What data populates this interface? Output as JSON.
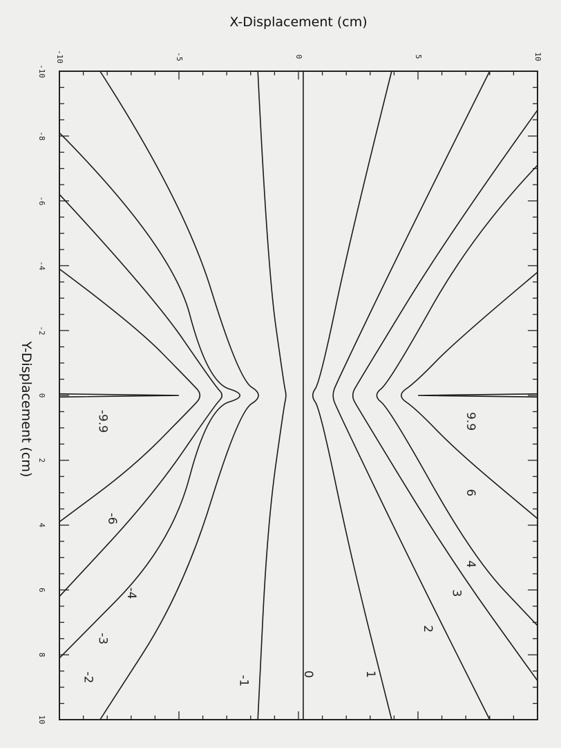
{
  "chart_data": {
    "type": "contour",
    "xlabel": "X-Displacement (cm)",
    "ylabel": "Y-Displacement (cm)",
    "xlim": [
      -10,
      10
    ],
    "ylim": [
      -10,
      10
    ],
    "x_ticks": [
      "-10",
      "-5",
      "0",
      "5",
      "10"
    ],
    "y_ticks": [
      "-10",
      "-8",
      "-6",
      "-4",
      "-2",
      "0",
      "2",
      "4",
      "6",
      "8",
      "10"
    ],
    "contour_levels": [
      {
        "level": 0,
        "label": "0",
        "label_at": [
          0.4,
          8.6
        ],
        "points": [
          [
            0.2,
            -10
          ],
          [
            0.2,
            10
          ]
        ]
      },
      {
        "level": 1,
        "label": "1",
        "label_at": [
          3.0,
          8.6
        ],
        "points": [
          [
            3.9,
            -10
          ],
          [
            2.2,
            -5
          ],
          [
            0.9,
            -0.4
          ],
          [
            0.5,
            0
          ],
          [
            0.9,
            0.4
          ],
          [
            2.2,
            5
          ],
          [
            3.9,
            10
          ]
        ]
      },
      {
        "level": 2,
        "label": "2",
        "label_at": [
          5.4,
          7.2
        ],
        "points": [
          [
            8.0,
            -10
          ],
          [
            4.6,
            -5
          ],
          [
            1.6,
            -0.4
          ],
          [
            1.4,
            0
          ],
          [
            1.6,
            0.4
          ],
          [
            4.6,
            5
          ],
          [
            8.0,
            10
          ]
        ]
      },
      {
        "level": 3,
        "label": "3",
        "label_at": [
          6.6,
          6.1
        ],
        "points": [
          [
            10,
            -8.8
          ],
          [
            6.3,
            -5
          ],
          [
            2.5,
            -0.4
          ],
          [
            2.2,
            0
          ],
          [
            2.5,
            0.4
          ],
          [
            6.3,
            5
          ],
          [
            10,
            8.8
          ]
        ]
      },
      {
        "level": 4,
        "label": "4",
        "label_at": [
          7.2,
          5.2
        ],
        "points": [
          [
            10,
            -7.1
          ],
          [
            7.3,
            -5
          ],
          [
            3.8,
            -0.4
          ],
          [
            3.1,
            0
          ],
          [
            3.8,
            0.4
          ],
          [
            7.3,
            5
          ],
          [
            10,
            7.1
          ]
        ]
      },
      {
        "level": 6,
        "label": "6",
        "label_at": [
          7.2,
          3.0
        ],
        "points": [
          [
            10,
            -3.8
          ],
          [
            6.6,
            -1.7
          ],
          [
            4.9,
            -0.4
          ],
          [
            4.1,
            0
          ],
          [
            4.9,
            0.4
          ],
          [
            6.6,
            1.7
          ],
          [
            10,
            3.8
          ]
        ]
      },
      {
        "level": 9.9,
        "label": "9.9",
        "label_at": [
          7.2,
          0.8
        ],
        "points": [
          [
            10,
            -0.05
          ],
          [
            5.0,
            0
          ],
          [
            10,
            0.05
          ]
        ]
      },
      {
        "level": -1,
        "label": "-1",
        "label_at": [
          -2.3,
          8.8
        ],
        "points": [
          [
            -1.7,
            -10
          ],
          [
            -1.3,
            -4
          ],
          [
            -0.6,
            -0.3
          ],
          [
            -0.5,
            0
          ],
          [
            -0.6,
            0.3
          ],
          [
            -1.3,
            4
          ],
          [
            -1.7,
            10
          ]
        ]
      },
      {
        "level": -2,
        "label": "-2",
        "label_at": [
          -8.8,
          8.7
        ],
        "points": [
          [
            -8.3,
            -10
          ],
          [
            -4.8,
            -6
          ],
          [
            -2.5,
            -0.5
          ],
          [
            -1.4,
            0
          ],
          [
            -2.5,
            0.5
          ],
          [
            -4.8,
            6
          ],
          [
            -8.3,
            10
          ]
        ]
      },
      {
        "level": -3,
        "label": "-3",
        "label_at": [
          -8.2,
          7.5
        ],
        "points": [
          [
            -10,
            -8.1
          ],
          [
            -5.3,
            -4.6
          ],
          [
            -3.8,
            -0.4
          ],
          [
            -2.0,
            0
          ],
          [
            -3.8,
            0.4
          ],
          [
            -5.3,
            4.6
          ],
          [
            -10,
            8.1
          ]
        ]
      },
      {
        "level": -4,
        "label": "-4",
        "label_at": [
          -7.0,
          6.1
        ],
        "points": [
          [
            -10,
            -6.2
          ],
          [
            -6.1,
            -3.1
          ],
          [
            -3.5,
            -0.3
          ],
          [
            -3.1,
            0
          ],
          [
            -3.5,
            0.3
          ],
          [
            -6.1,
            3.1
          ],
          [
            -10,
            6.2
          ]
        ]
      },
      {
        "level": -6,
        "label": "-6",
        "label_at": [
          -7.8,
          3.8
        ],
        "points": [
          [
            -10,
            -3.9
          ],
          [
            -6.9,
            -2.2
          ],
          [
            -4.5,
            -0.4
          ],
          [
            -4.0,
            0
          ],
          [
            -4.5,
            0.4
          ],
          [
            -6.9,
            2.2
          ],
          [
            -10,
            3.9
          ]
        ]
      },
      {
        "level": -9.9,
        "label": "-9.9",
        "label_at": [
          -8.2,
          0.8
        ],
        "points": [
          [
            -10,
            -0.05
          ],
          [
            -5.0,
            0
          ],
          [
            -10,
            0.05
          ]
        ]
      }
    ]
  }
}
